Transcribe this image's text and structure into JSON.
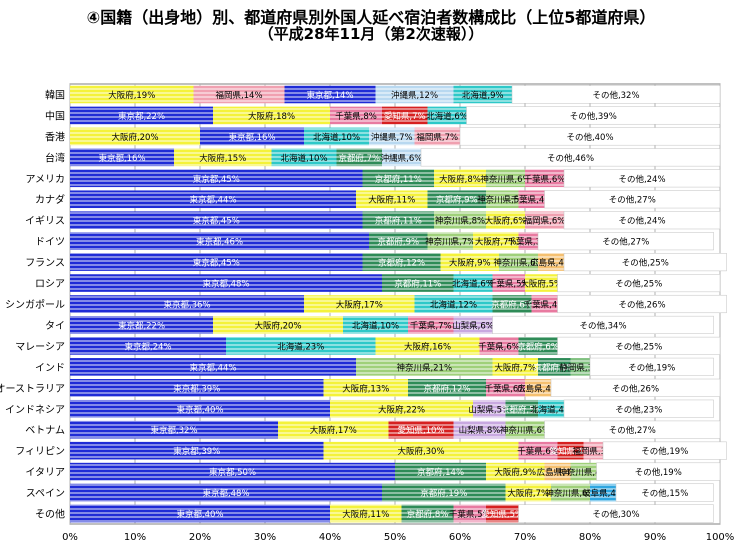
{
  "chart_data": {
    "type": "bar",
    "orientation": "horizontal",
    "stacked": true,
    "title": "④国籍（出身地）別、都道府県別外国人延べ宿泊者数構成比（上位5都道府県）",
    "subtitle": "（平成28年11月（第2次速報））",
    "xlim": [
      0,
      100
    ],
    "x_ticks": [
      "0%",
      "10%",
      "20%",
      "30%",
      "40%",
      "50%",
      "60%",
      "70%",
      "80%",
      "90%",
      "100%"
    ],
    "grid": true,
    "colors": {
      "東京都": "#1f2bd6",
      "大阪府": "#f4f23a",
      "北海道": "#2ec8c8",
      "京都府": "#2e8b57",
      "千葉県": "#e87aa0",
      "神奈川県": "#9fd07a",
      "沖縄県": "#b8d8f0",
      "福岡県": "#f0a0b0",
      "愛知県": "#d62020",
      "山梨県": "#c8a8e0",
      "広島県": "#f5c070",
      "静岡県": "#80c080",
      "岐阜県": "#2ea6e0",
      "その他": "#ffffff"
    },
    "rows": [
      {
        "label": "韓国",
        "segments": [
          {
            "name": "大阪府",
            "value": 19,
            "text": "大阪府,19%"
          },
          {
            "name": "福岡県",
            "value": 14,
            "text": "福岡県,14%"
          },
          {
            "name": "東京都",
            "value": 14,
            "text": "東京都,14%"
          },
          {
            "name": "沖縄県",
            "value": 12,
            "text": "沖縄県,12%"
          },
          {
            "name": "北海道",
            "value": 9,
            "text": "北海道,9%"
          },
          {
            "name": "その他",
            "value": 32,
            "text": "その他,32%"
          }
        ]
      },
      {
        "label": "中国",
        "segments": [
          {
            "name": "東京都",
            "value": 22,
            "text": "東京都,22%"
          },
          {
            "name": "大阪府",
            "value": 18,
            "text": "大阪府,18%"
          },
          {
            "name": "千葉県",
            "value": 8,
            "text": "千葉県,8%"
          },
          {
            "name": "愛知県",
            "value": 7,
            "text": "愛知県,7%"
          },
          {
            "name": "北海道",
            "value": 6,
            "text": "北海道,6%"
          },
          {
            "name": "その他",
            "value": 39,
            "text": "その他,39%"
          }
        ]
      },
      {
        "label": "香港",
        "segments": [
          {
            "name": "大阪府",
            "value": 20,
            "text": "大阪府,20%"
          },
          {
            "name": "東京都",
            "value": 16,
            "text": "東京都,16%"
          },
          {
            "name": "北海道",
            "value": 10,
            "text": "北海道,10%"
          },
          {
            "name": "沖縄県",
            "value": 7,
            "text": "沖縄県,7%"
          },
          {
            "name": "福岡県",
            "value": 7,
            "text": "福岡県,7%"
          },
          {
            "name": "その他",
            "value": 40,
            "text": "その他,40%"
          }
        ]
      },
      {
        "label": "台湾",
        "segments": [
          {
            "name": "東京都",
            "value": 16,
            "text": "東京都,16%"
          },
          {
            "name": "大阪府",
            "value": 15,
            "text": "大阪府,15%"
          },
          {
            "name": "北海道",
            "value": 10,
            "text": "北海道,10%"
          },
          {
            "name": "京都府",
            "value": 7,
            "text": "京都府,7%"
          },
          {
            "name": "沖縄県",
            "value": 6,
            "text": "沖縄県,6%"
          },
          {
            "name": "その他",
            "value": 46,
            "text": "その他,46%"
          }
        ]
      },
      {
        "label": "アメリカ",
        "segments": [
          {
            "name": "東京都",
            "value": 45,
            "text": "東京都,45%"
          },
          {
            "name": "京都府",
            "value": 11,
            "text": "京都府,11%"
          },
          {
            "name": "大阪府",
            "value": 8,
            "text": "大阪府,8%"
          },
          {
            "name": "神奈川県",
            "value": 6,
            "text": "神奈川県,6%"
          },
          {
            "name": "千葉県",
            "value": 6,
            "text": "千葉県,6%"
          },
          {
            "name": "その他",
            "value": 24,
            "text": "その他,24%"
          }
        ]
      },
      {
        "label": "カナダ",
        "segments": [
          {
            "name": "東京都",
            "value": 44,
            "text": "東京都,44%"
          },
          {
            "name": "大阪府",
            "value": 11,
            "text": "大阪府,11%"
          },
          {
            "name": "京都府",
            "value": 9,
            "text": "京都府,9%"
          },
          {
            "name": "神奈川県",
            "value": 5,
            "text": "神奈川県,5%"
          },
          {
            "name": "千葉県",
            "value": 4,
            "text": "千葉県,4%"
          },
          {
            "name": "その他",
            "value": 27,
            "text": "その他,27%"
          }
        ]
      },
      {
        "label": "イギリス",
        "segments": [
          {
            "name": "東京都",
            "value": 45,
            "text": "東京都,45%"
          },
          {
            "name": "京都府",
            "value": 11,
            "text": "京都府,11%"
          },
          {
            "name": "神奈川県",
            "value": 8,
            "text": "神奈川県,8%"
          },
          {
            "name": "大阪府",
            "value": 6,
            "text": "大阪府,6%"
          },
          {
            "name": "福岡県",
            "value": 6,
            "text": "福岡県,6%"
          },
          {
            "name": "その他",
            "value": 24,
            "text": "その他,24%"
          }
        ]
      },
      {
        "label": "ドイツ",
        "segments": [
          {
            "name": "東京都",
            "value": 46,
            "text": "東京都,46%"
          },
          {
            "name": "京都府",
            "value": 9,
            "text": "京都府,9%"
          },
          {
            "name": "神奈川県",
            "value": 7,
            "text": "神奈川県,7%"
          },
          {
            "name": "大阪府",
            "value": 7,
            "text": "大阪府,7%"
          },
          {
            "name": "千葉県",
            "value": 3,
            "text": "千葉県,3%"
          },
          {
            "name": "その他",
            "value": 27,
            "text": "その他,27%"
          }
        ]
      },
      {
        "label": "フランス",
        "segments": [
          {
            "name": "東京都",
            "value": 45,
            "text": "東京都,45%"
          },
          {
            "name": "京都府",
            "value": 12,
            "text": "京都府,12%"
          },
          {
            "name": "大阪府",
            "value": 9,
            "text": "大阪府,9%"
          },
          {
            "name": "神奈川県",
            "value": 6,
            "text": "神奈川県,6%"
          },
          {
            "name": "広島県",
            "value": 4,
            "text": "広島県,4%"
          },
          {
            "name": "その他",
            "value": 25,
            "text": "その他,25%"
          }
        ]
      },
      {
        "label": "ロシア",
        "segments": [
          {
            "name": "東京都",
            "value": 48,
            "text": "東京都,48%"
          },
          {
            "name": "京都府",
            "value": 11,
            "text": "京都府,11%"
          },
          {
            "name": "北海道",
            "value": 6,
            "text": "北海道,6%"
          },
          {
            "name": "千葉県",
            "value": 5,
            "text": "千葉県,5%"
          },
          {
            "name": "大阪府",
            "value": 5,
            "text": "大阪府,5%"
          },
          {
            "name": "その他",
            "value": 25,
            "text": "その他,25%"
          }
        ]
      },
      {
        "label": "シンガポール",
        "segments": [
          {
            "name": "東京都",
            "value": 36,
            "text": "東京都,36%"
          },
          {
            "name": "大阪府",
            "value": 17,
            "text": "大阪府,17%"
          },
          {
            "name": "北海道",
            "value": 12,
            "text": "北海道,12%"
          },
          {
            "name": "京都府",
            "value": 6,
            "text": "京都府,6%"
          },
          {
            "name": "千葉県",
            "value": 4,
            "text": "千葉県,4%"
          },
          {
            "name": "その他",
            "value": 26,
            "text": "その他,26%"
          }
        ]
      },
      {
        "label": "タイ",
        "segments": [
          {
            "name": "東京都",
            "value": 22,
            "text": "東京都,22%"
          },
          {
            "name": "大阪府",
            "value": 20,
            "text": "大阪府,20%"
          },
          {
            "name": "北海道",
            "value": 10,
            "text": "北海道,10%"
          },
          {
            "name": "千葉県",
            "value": 7,
            "text": "千葉県,7%"
          },
          {
            "name": "山梨県",
            "value": 6,
            "text": "山梨県,6%"
          },
          {
            "name": "その他",
            "value": 34,
            "text": "その他,34%"
          }
        ]
      },
      {
        "label": "マレーシア",
        "segments": [
          {
            "name": "東京都",
            "value": 24,
            "text": "東京都,24%"
          },
          {
            "name": "北海道",
            "value": 23,
            "text": "北海道,23%"
          },
          {
            "name": "大阪府",
            "value": 16,
            "text": "大阪府,16%"
          },
          {
            "name": "千葉県",
            "value": 6,
            "text": "千葉県,6%"
          },
          {
            "name": "京都府",
            "value": 6,
            "text": "京都府,6%"
          },
          {
            "name": "その他",
            "value": 25,
            "text": "その他,25%"
          }
        ]
      },
      {
        "label": "インド",
        "segments": [
          {
            "name": "東京都",
            "value": 44,
            "text": "東京都,44%"
          },
          {
            "name": "神奈川県",
            "value": 21,
            "text": "神奈川県,21%"
          },
          {
            "name": "大阪府",
            "value": 7,
            "text": "大阪府,7%"
          },
          {
            "name": "京都府",
            "value": 5,
            "text": "京都府,5%"
          },
          {
            "name": "静岡県",
            "value": 3,
            "text": "静岡県,3%"
          },
          {
            "name": "その他",
            "value": 19,
            "text": "その他,19%"
          }
        ]
      },
      {
        "label": "オーストラリア",
        "segments": [
          {
            "name": "東京都",
            "value": 39,
            "text": "東京都,39%"
          },
          {
            "name": "大阪府",
            "value": 13,
            "text": "大阪府,13%"
          },
          {
            "name": "京都府",
            "value": 12,
            "text": "京都府,12%"
          },
          {
            "name": "千葉県",
            "value": 6,
            "text": "千葉県,6%"
          },
          {
            "name": "広島県",
            "value": 4,
            "text": "広島県,4%"
          },
          {
            "name": "その他",
            "value": 26,
            "text": "その他,26%"
          }
        ]
      },
      {
        "label": "インドネシア",
        "segments": [
          {
            "name": "東京都",
            "value": 40,
            "text": "東京都,40%"
          },
          {
            "name": "大阪府",
            "value": 22,
            "text": "大阪府,22%"
          },
          {
            "name": "山梨県",
            "value": 5,
            "text": "山梨県,5%"
          },
          {
            "name": "京都府",
            "value": 5,
            "text": "京都府,5%"
          },
          {
            "name": "北海道",
            "value": 4,
            "text": "北海道,4%"
          },
          {
            "name": "その他",
            "value": 23,
            "text": "その他,23%"
          }
        ]
      },
      {
        "label": "ベトナム",
        "segments": [
          {
            "name": "東京都",
            "value": 32,
            "text": "東京都,32%"
          },
          {
            "name": "大阪府",
            "value": 17,
            "text": "大阪府,17%"
          },
          {
            "name": "愛知県",
            "value": 10,
            "text": "愛知県,10%"
          },
          {
            "name": "山梨県",
            "value": 8,
            "text": "山梨県,8%"
          },
          {
            "name": "神奈川県",
            "value": 6,
            "text": "神奈川県,6%"
          },
          {
            "name": "その他",
            "value": 27,
            "text": "その他,27%"
          }
        ]
      },
      {
        "label": "フィリピン",
        "segments": [
          {
            "name": "東京都",
            "value": 39,
            "text": "東京都,39%"
          },
          {
            "name": "大阪府",
            "value": 30,
            "text": "大阪府,30%"
          },
          {
            "name": "千葉県",
            "value": 6,
            "text": "千葉県,6%"
          },
          {
            "name": "愛知県",
            "value": 4,
            "text": "愛知県,4%"
          },
          {
            "name": "福岡県",
            "value": 3,
            "text": "福岡県,3%"
          },
          {
            "name": "その他",
            "value": 19,
            "text": "その他,19%"
          }
        ]
      },
      {
        "label": "イタリア",
        "segments": [
          {
            "name": "東京都",
            "value": 50,
            "text": "東京都,50%"
          },
          {
            "name": "京都府",
            "value": 14,
            "text": "京都府,14%"
          },
          {
            "name": "大阪府",
            "value": 9,
            "text": "大阪府,9%"
          },
          {
            "name": "広島県",
            "value": 4,
            "text": "広島県,4%"
          },
          {
            "name": "神奈川県",
            "value": 4,
            "text": "神奈川県,4%"
          },
          {
            "name": "その他",
            "value": 19,
            "text": "その他,19%"
          }
        ]
      },
      {
        "label": "スペイン",
        "segments": [
          {
            "name": "東京都",
            "value": 48,
            "text": "東京都,48%"
          },
          {
            "name": "京都府",
            "value": 19,
            "text": "京都府,19%"
          },
          {
            "name": "大阪府",
            "value": 7,
            "text": "大阪府,7%"
          },
          {
            "name": "神奈川県",
            "value": 6,
            "text": "神奈川県,6%"
          },
          {
            "name": "岐阜県",
            "value": 4,
            "text": "岐阜県,4%"
          },
          {
            "name": "その他",
            "value": 15,
            "text": "その他,15%"
          }
        ]
      },
      {
        "label": "その他",
        "segments": [
          {
            "name": "東京都",
            "value": 40,
            "text": "東京都,40%"
          },
          {
            "name": "大阪府",
            "value": 11,
            "text": "大阪府,11%"
          },
          {
            "name": "京都府",
            "value": 8,
            "text": "京都府,8%"
          },
          {
            "name": "千葉県",
            "value": 5,
            "text": "千葉県,5%"
          },
          {
            "name": "愛知県",
            "value": 5,
            "text": "愛知県,5%"
          },
          {
            "name": "その他",
            "value": 30,
            "text": "その他,30%"
          }
        ]
      }
    ]
  }
}
